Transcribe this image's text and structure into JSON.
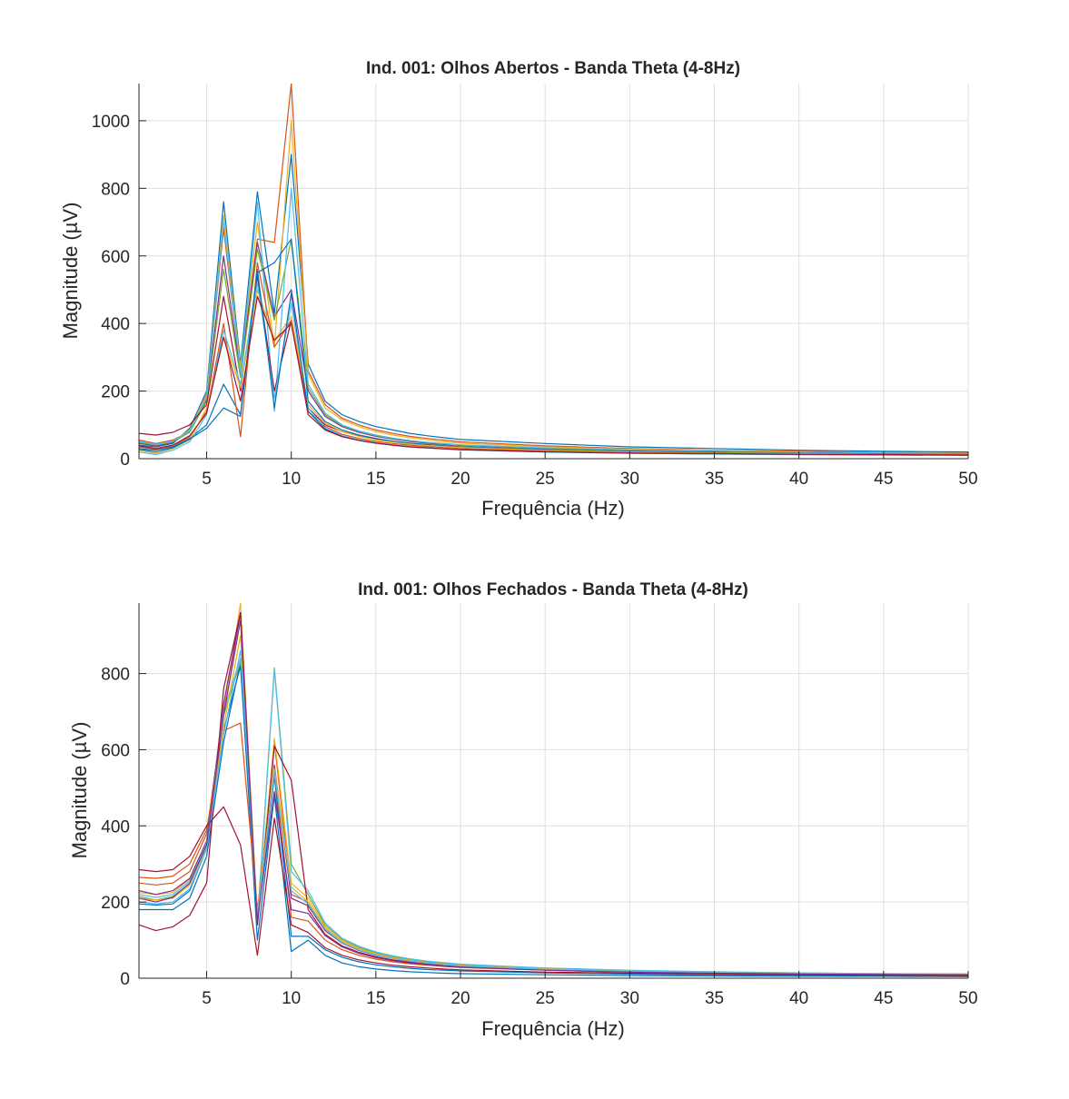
{
  "chart_data": [
    {
      "type": "line",
      "title": "Ind. 001: Olhos Abertos - Banda Theta (4-8Hz)",
      "xlabel": "Frequência (Hz)",
      "ylabel": "Magnitude (µV)",
      "xlim": [
        1,
        50
      ],
      "ylim": [
        0,
        1110
      ],
      "xticks": [
        5,
        10,
        15,
        20,
        25,
        30,
        35,
        40,
        45,
        50
      ],
      "yticks": [
        0,
        200,
        400,
        600,
        800,
        1000
      ],
      "grid": true,
      "x": [
        1,
        2,
        3,
        4,
        5,
        6,
        7,
        8,
        9,
        10,
        11,
        12,
        13,
        14,
        15,
        16,
        17,
        18,
        19,
        20,
        25,
        30,
        35,
        40,
        45,
        50
      ],
      "series": [
        {
          "color": "#0072bd",
          "values": [
            40,
            35,
            45,
            90,
            200,
            760,
            280,
            790,
            430,
            900,
            280,
            170,
            130,
            110,
            95,
            85,
            75,
            68,
            62,
            57,
            45,
            35,
            30,
            25,
            22,
            20
          ]
        },
        {
          "color": "#d95319",
          "values": [
            55,
            45,
            55,
            80,
            190,
            680,
            260,
            650,
            640,
            1110,
            260,
            160,
            120,
            100,
            85,
            75,
            66,
            60,
            55,
            50,
            38,
            30,
            25,
            22,
            19,
            17
          ]
        },
        {
          "color": "#edb120",
          "values": [
            50,
            40,
            50,
            85,
            185,
            720,
            270,
            700,
            330,
            1000,
            250,
            150,
            115,
            95,
            80,
            70,
            62,
            56,
            50,
            46,
            35,
            28,
            24,
            20,
            18,
            16
          ]
        },
        {
          "color": "#7e2f8e",
          "values": [
            45,
            38,
            48,
            80,
            175,
            600,
            250,
            640,
            420,
            500,
            200,
            125,
            95,
            78,
            66,
            58,
            51,
            46,
            42,
            39,
            30,
            24,
            20,
            17,
            15,
            13
          ]
        },
        {
          "color": "#77ac30",
          "values": [
            48,
            40,
            50,
            78,
            170,
            560,
            240,
            620,
            410,
            650,
            210,
            130,
            98,
            80,
            68,
            60,
            53,
            48,
            44,
            40,
            31,
            25,
            21,
            18,
            16,
            14
          ]
        },
        {
          "color": "#4dbeee",
          "values": [
            52,
            42,
            52,
            82,
            180,
            700,
            255,
            760,
            140,
            800,
            220,
            135,
            100,
            82,
            70,
            61,
            54,
            49,
            45,
            41,
            32,
            26,
            22,
            19,
            17,
            15
          ]
        },
        {
          "color": "#a2142f",
          "values": [
            75,
            70,
            78,
            100,
            160,
            480,
            200,
            540,
            200,
            410,
            150,
            100,
            80,
            68,
            58,
            51,
            45,
            41,
            38,
            35,
            27,
            22,
            19,
            16,
            14,
            13
          ]
        },
        {
          "color": "#0072bd",
          "values": [
            30,
            25,
            35,
            60,
            100,
            220,
            130,
            550,
            580,
            650,
            170,
            110,
            85,
            70,
            60,
            52,
            46,
            42,
            38,
            35,
            27,
            22,
            19,
            16,
            14,
            12
          ]
        },
        {
          "color": "#d95319",
          "values": [
            35,
            28,
            38,
            65,
            140,
            400,
            65,
            580,
            330,
            410,
            140,
            95,
            72,
            60,
            51,
            45,
            40,
            36,
            33,
            30,
            23,
            19,
            16,
            14,
            12,
            11
          ]
        },
        {
          "color": "#edb120",
          "values": [
            25,
            15,
            30,
            55,
            150,
            360,
            210,
            500,
            350,
            420,
            160,
            105,
            80,
            66,
            56,
            49,
            43,
            39,
            36,
            33,
            25,
            20,
            17,
            15,
            13,
            12
          ]
        },
        {
          "color": "#4dbeee",
          "values": [
            20,
            12,
            25,
            50,
            130,
            380,
            220,
            520,
            180,
            460,
            150,
            90,
            68,
            56,
            47,
            41,
            36,
            33,
            30,
            27,
            20,
            16,
            14,
            12,
            11,
            10
          ]
        },
        {
          "color": "#0072bd",
          "values": [
            28,
            20,
            32,
            58,
            90,
            150,
            125,
            560,
            150,
            490,
            140,
            88,
            66,
            54,
            46,
            40,
            35,
            32,
            29,
            26,
            20,
            16,
            14,
            12,
            11,
            10
          ]
        },
        {
          "color": "#a2142f",
          "values": [
            38,
            30,
            40,
            68,
            135,
            360,
            170,
            480,
            350,
            400,
            130,
            85,
            65,
            54,
            46,
            40,
            35,
            32,
            29,
            27,
            21,
            17,
            15,
            13,
            12,
            11
          ]
        }
      ]
    },
    {
      "type": "line",
      "title": "Ind. 001: Olhos Fechados - Banda Theta (4-8Hz)",
      "xlabel": "Frequência (Hz)",
      "ylabel": "Magnitude (µV)",
      "xlim": [
        1,
        50
      ],
      "ylim": [
        0,
        985
      ],
      "xticks": [
        5,
        10,
        15,
        20,
        25,
        30,
        35,
        40,
        45,
        50
      ],
      "yticks": [
        0,
        200,
        400,
        600,
        800
      ],
      "grid": true,
      "x": [
        1,
        2,
        3,
        4,
        5,
        6,
        7,
        8,
        9,
        10,
        11,
        12,
        13,
        14,
        15,
        16,
        17,
        18,
        19,
        20,
        25,
        30,
        35,
        40,
        45,
        50
      ],
      "series": [
        {
          "color": "#0072bd",
          "values": [
            180,
            180,
            180,
            210,
            320,
            620,
            830,
            100,
            480,
            70,
            100,
            60,
            40,
            30,
            24,
            20,
            17,
            15,
            13,
            12,
            9,
            7,
            6,
            5,
            5,
            4
          ]
        },
        {
          "color": "#d95319",
          "values": [
            250,
            245,
            250,
            280,
            380,
            700,
            960,
            160,
            620,
            220,
            200,
            130,
            95,
            75,
            62,
            53,
            46,
            41,
            37,
            33,
            24,
            18,
            15,
            13,
            11,
            10
          ]
        },
        {
          "color": "#edb120",
          "values": [
            225,
            220,
            225,
            260,
            360,
            690,
            985,
            150,
            630,
            250,
            210,
            135,
            98,
            78,
            64,
            55,
            48,
            42,
            38,
            34,
            25,
            19,
            16,
            13,
            11,
            10
          ]
        },
        {
          "color": "#7e2f8e",
          "values": [
            230,
            220,
            230,
            262,
            360,
            720,
            960,
            140,
            560,
            210,
            190,
            125,
            92,
            73,
            60,
            52,
            45,
            40,
            36,
            33,
            24,
            18,
            15,
            13,
            11,
            10
          ]
        },
        {
          "color": "#77ac30",
          "values": [
            215,
            205,
            215,
            248,
            350,
            690,
            830,
            150,
            815,
            300,
            220,
            140,
            102,
            81,
            67,
            57,
            50,
            44,
            40,
            36,
            26,
            20,
            16,
            14,
            12,
            11
          ]
        },
        {
          "color": "#4dbeee",
          "values": [
            220,
            212,
            220,
            255,
            355,
            700,
            840,
            140,
            810,
            280,
            230,
            145,
            105,
            84,
            69,
            59,
            51,
            45,
            41,
            37,
            27,
            21,
            17,
            14,
            12,
            11
          ]
        },
        {
          "color": "#a2142f",
          "values": [
            140,
            125,
            135,
            165,
            250,
            760,
            960,
            140,
            610,
            520,
            180,
            115,
            85,
            68,
            56,
            48,
            42,
            37,
            33,
            30,
            22,
            17,
            14,
            12,
            10,
            9
          ]
        },
        {
          "color": "#0072bd",
          "values": [
            195,
            192,
            195,
            230,
            340,
            650,
            820,
            150,
            530,
            110,
            110,
            75,
            55,
            43,
            35,
            30,
            26,
            23,
            21,
            19,
            14,
            11,
            9,
            8,
            7,
            6
          ]
        },
        {
          "color": "#d95319",
          "values": [
            265,
            262,
            268,
            300,
            390,
            650,
            670,
            180,
            540,
            160,
            150,
            100,
            75,
            60,
            50,
            43,
            38,
            34,
            31,
            28,
            21,
            16,
            14,
            12,
            10,
            9
          ]
        },
        {
          "color": "#edb120",
          "values": [
            210,
            205,
            210,
            245,
            345,
            660,
            900,
            170,
            550,
            240,
            200,
            130,
            95,
            75,
            62,
            53,
            46,
            41,
            37,
            33,
            24,
            18,
            15,
            13,
            11,
            10
          ]
        },
        {
          "color": "#4dbeee",
          "values": [
            200,
            195,
            200,
            235,
            340,
            640,
            860,
            160,
            540,
            230,
            195,
            128,
            93,
            74,
            61,
            52,
            45,
            40,
            36,
            32,
            23,
            18,
            15,
            12,
            10,
            9
          ]
        },
        {
          "color": "#a2142f",
          "values": [
            285,
            280,
            285,
            320,
            400,
            450,
            350,
            60,
            420,
            140,
            120,
            80,
            60,
            48,
            40,
            34,
            30,
            27,
            24,
            22,
            16,
            13,
            11,
            9,
            8,
            7
          ]
        },
        {
          "color": "#7e2f8e",
          "values": [
            210,
            200,
            212,
            250,
            350,
            690,
            940,
            150,
            490,
            180,
            170,
            112,
            82,
            65,
            54,
            46,
            40,
            36,
            32,
            29,
            21,
            16,
            13,
            11,
            10,
            9
          ]
        }
      ]
    }
  ]
}
